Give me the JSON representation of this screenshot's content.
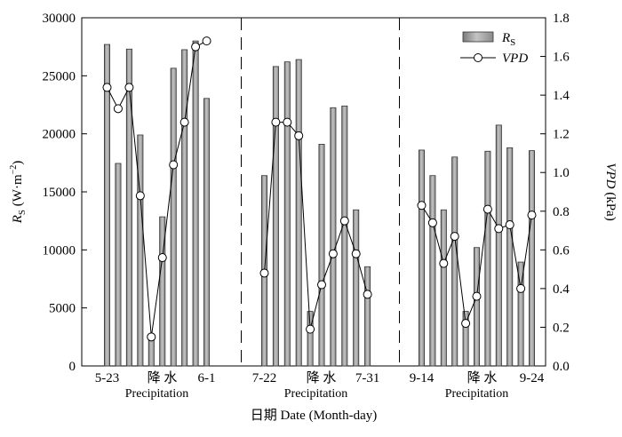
{
  "chart_data": {
    "type": "bar+line",
    "title": "",
    "xlabel": "日期 Date (Month-day)",
    "ylabel_left": {
      "main": "R",
      "sub": "S",
      "rest": " (W·m",
      "sup": "−2",
      "end": ")"
    },
    "ylabel_right": {
      "italic": "VPD",
      "rest": " (kPa)"
    },
    "y_left": {
      "min": 0,
      "max": 30000,
      "ticks": [
        "0",
        "5000",
        "10000",
        "15000",
        "20000",
        "25000",
        "30000"
      ]
    },
    "y_right": {
      "min": 0,
      "max": 1.8,
      "ticks": [
        "0.0",
        "0.2",
        "0.4",
        "0.6",
        "0.8",
        "1.0",
        "1.2",
        "1.4",
        "1.6",
        "1.8"
      ]
    },
    "legend": {
      "position": "top-right",
      "bar": {
        "main": "R",
        "sub": "S"
      },
      "line": "VPD"
    },
    "groups": [
      {
        "start_label": "5-23",
        "end_label": "6-1",
        "precip_cn": "降 水",
        "precip_en": "Precipitation",
        "rs": [
          27700,
          17450,
          27300,
          19900,
          2600,
          12850,
          25650,
          27250,
          28000,
          23050
        ],
        "vpd": [
          1.44,
          1.33,
          1.44,
          0.88,
          0.15,
          0.56,
          1.04,
          1.26,
          1.65,
          1.68
        ]
      },
      {
        "start_label": "7-22",
        "end_label": "7-31",
        "precip_cn": "降 水",
        "precip_en": "Precipitation",
        "rs": [
          16400,
          25800,
          26200,
          26400,
          4700,
          19100,
          22250,
          22400,
          13450,
          8550
        ],
        "vpd": [
          0.48,
          1.26,
          1.26,
          1.19,
          0.19,
          0.42,
          0.58,
          0.75,
          0.58,
          0.37
        ]
      },
      {
        "start_label": "9-14",
        "end_label": "9-24",
        "precip_cn": "降 水",
        "precip_en": "Precipitation",
        "rs": [
          18600,
          16400,
          13450,
          18000,
          4700,
          10200,
          18500,
          20750,
          18800,
          8950,
          18550
        ],
        "vpd": [
          0.83,
          0.74,
          0.53,
          0.67,
          0.22,
          0.36,
          0.81,
          0.71,
          0.73,
          0.4,
          0.78
        ]
      }
    ],
    "colors": {
      "bar_fill": "#a3a3a3",
      "bar_stroke": "#333333",
      "line": "#000000",
      "marker_fill": "#ffffff"
    }
  }
}
